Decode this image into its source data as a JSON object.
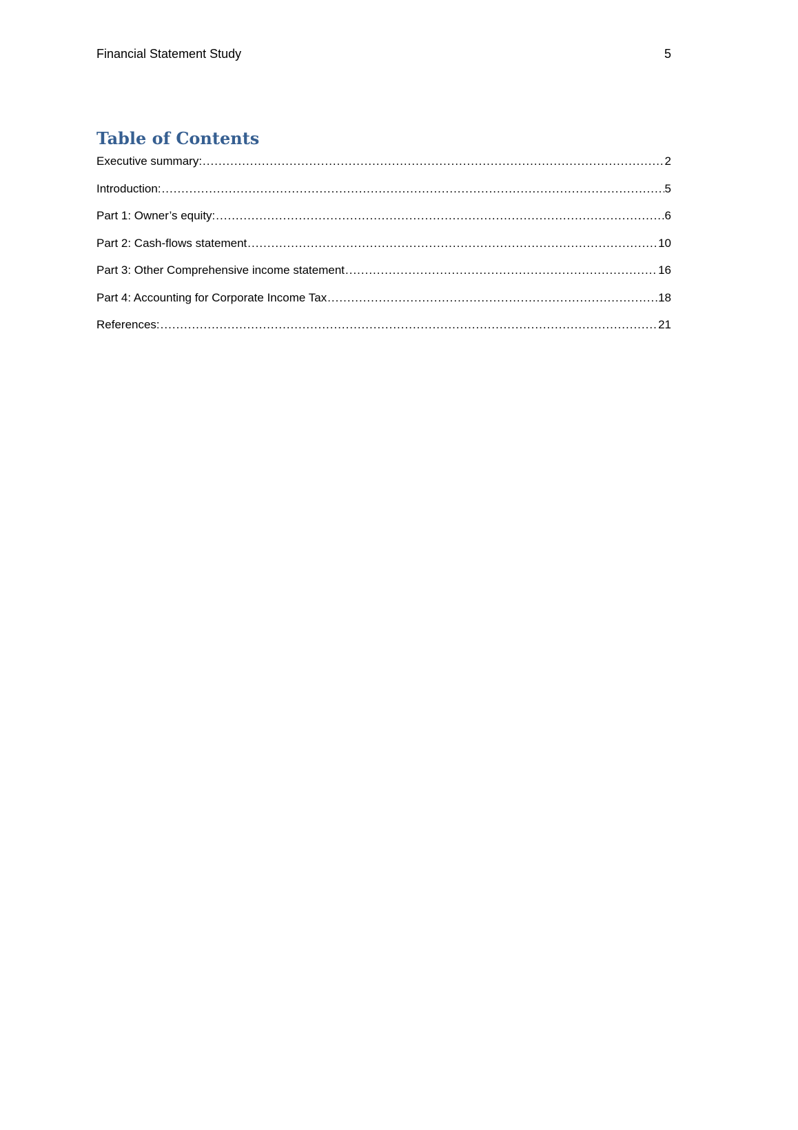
{
  "header": {
    "title": "Financial Statement Study",
    "page_number": "5"
  },
  "toc": {
    "title": "Table of Contents",
    "entries": [
      {
        "label": "Executive summary:",
        "page": "2"
      },
      {
        "label": "Introduction:",
        "page": "5"
      },
      {
        "label": "Part 1: Owner’s equity:",
        "page": "6"
      },
      {
        "label": "Part 2: Cash-flows statement",
        "page": "10"
      },
      {
        "label": "Part 3: Other Comprehensive income statement",
        "page": "16"
      },
      {
        "label": "Part 4: Accounting for Corporate Income Tax",
        "page": "18"
      },
      {
        "label": "References:",
        "page": "21"
      }
    ]
  },
  "colors": {
    "heading": "#365f91"
  }
}
